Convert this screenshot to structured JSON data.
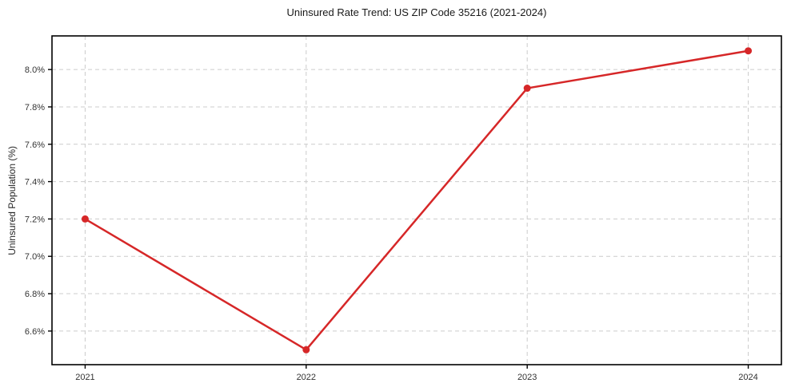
{
  "chart_data": {
    "type": "line",
    "title": "Uninsured Rate Trend: US ZIP Code 35216 (2021-2024)",
    "xlabel": "",
    "ylabel": "Uninsured Population (%)",
    "x": [
      2021,
      2022,
      2023,
      2024
    ],
    "values": [
      7.2,
      6.5,
      7.9,
      8.1
    ],
    "x_tick_labels": [
      "2021",
      "2022",
      "2023",
      "2024"
    ],
    "y_ticks": [
      6.6,
      6.8,
      7.0,
      7.2,
      7.4,
      7.6,
      7.8,
      8.0
    ],
    "y_tick_labels": [
      "6.6%",
      "6.8%",
      "7.0%",
      "7.2%",
      "7.4%",
      "7.6%",
      "7.8%",
      "8.0%"
    ],
    "xlim": [
      2020.85,
      2024.15
    ],
    "ylim": [
      6.42,
      8.18
    ],
    "grid": true,
    "grid_style": "dashed",
    "legend_position": "none",
    "line_color": "#d62728",
    "marker_color": "#d62728",
    "grid_color": "#cccccc",
    "spine_color": "#000000",
    "tick_text_color": "#333333"
  }
}
